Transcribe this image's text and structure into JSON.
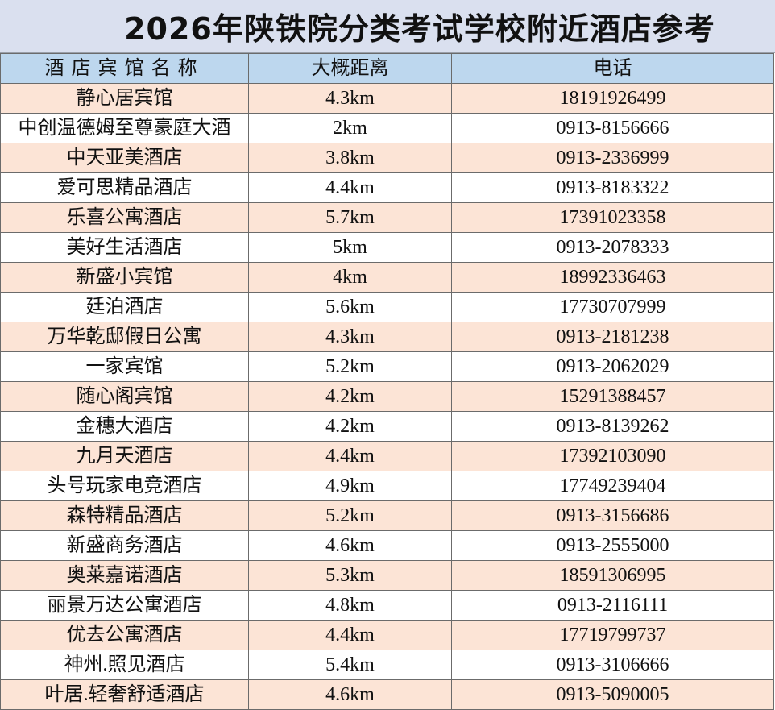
{
  "title": "2026年陕铁院分类考试学校附近酒店参考",
  "headers": {
    "name": "酒店宾馆名称",
    "distance": "大概距离",
    "phone": "电话"
  },
  "colors": {
    "title_bg": "#dae0ef",
    "header_bg": "#bdd7ee",
    "stripe": "#fce4d6"
  },
  "rows": [
    {
      "name": "静心居宾馆",
      "distance": "4.3km",
      "phone": "18191926499"
    },
    {
      "name": "中创温德姆至尊豪庭大酒",
      "distance": "2km",
      "phone": "0913-8156666"
    },
    {
      "name": "中天亚美酒店",
      "distance": "3.8km",
      "phone": "0913-2336999"
    },
    {
      "name": "爱可思精品酒店",
      "distance": "4.4km",
      "phone": "0913-8183322"
    },
    {
      "name": "乐喜公寓酒店",
      "distance": "5.7km",
      "phone": "17391023358"
    },
    {
      "name": "美好生活酒店",
      "distance": "5km",
      "phone": "0913-2078333"
    },
    {
      "name": "新盛小宾馆",
      "distance": "4km",
      "phone": "18992336463"
    },
    {
      "name": "廷泊酒店",
      "distance": "5.6km",
      "phone": "17730707999"
    },
    {
      "name": "万华乾邸假日公寓",
      "distance": "4.3km",
      "phone": "0913-2181238"
    },
    {
      "name": "一家宾馆",
      "distance": "5.2km",
      "phone": "0913-2062029"
    },
    {
      "name": "随心阁宾馆",
      "distance": "4.2km",
      "phone": "15291388457"
    },
    {
      "name": "金穗大酒店",
      "distance": "4.2km",
      "phone": "0913-8139262"
    },
    {
      "name": "九月天酒店",
      "distance": "4.4km",
      "phone": "17392103090"
    },
    {
      "name": "头号玩家电竞酒店",
      "distance": "4.9km",
      "phone": "17749239404"
    },
    {
      "name": "森特精品酒店",
      "distance": "5.2km",
      "phone": "0913-3156686"
    },
    {
      "name": "新盛商务酒店",
      "distance": "4.6km",
      "phone": "0913-2555000"
    },
    {
      "name": "奥莱嘉诺酒店",
      "distance": "5.3km",
      "phone": "18591306995"
    },
    {
      "name": "丽景万达公寓酒店",
      "distance": "4.8km",
      "phone": "0913-2116111"
    },
    {
      "name": "优去公寓酒店",
      "distance": "4.4km",
      "phone": "17719799737"
    },
    {
      "name": "神州.照见酒店",
      "distance": "5.4km",
      "phone": "0913-3106666"
    },
    {
      "name": "叶居.轻奢舒适酒店",
      "distance": "4.6km",
      "phone": "0913-5090005"
    }
  ]
}
